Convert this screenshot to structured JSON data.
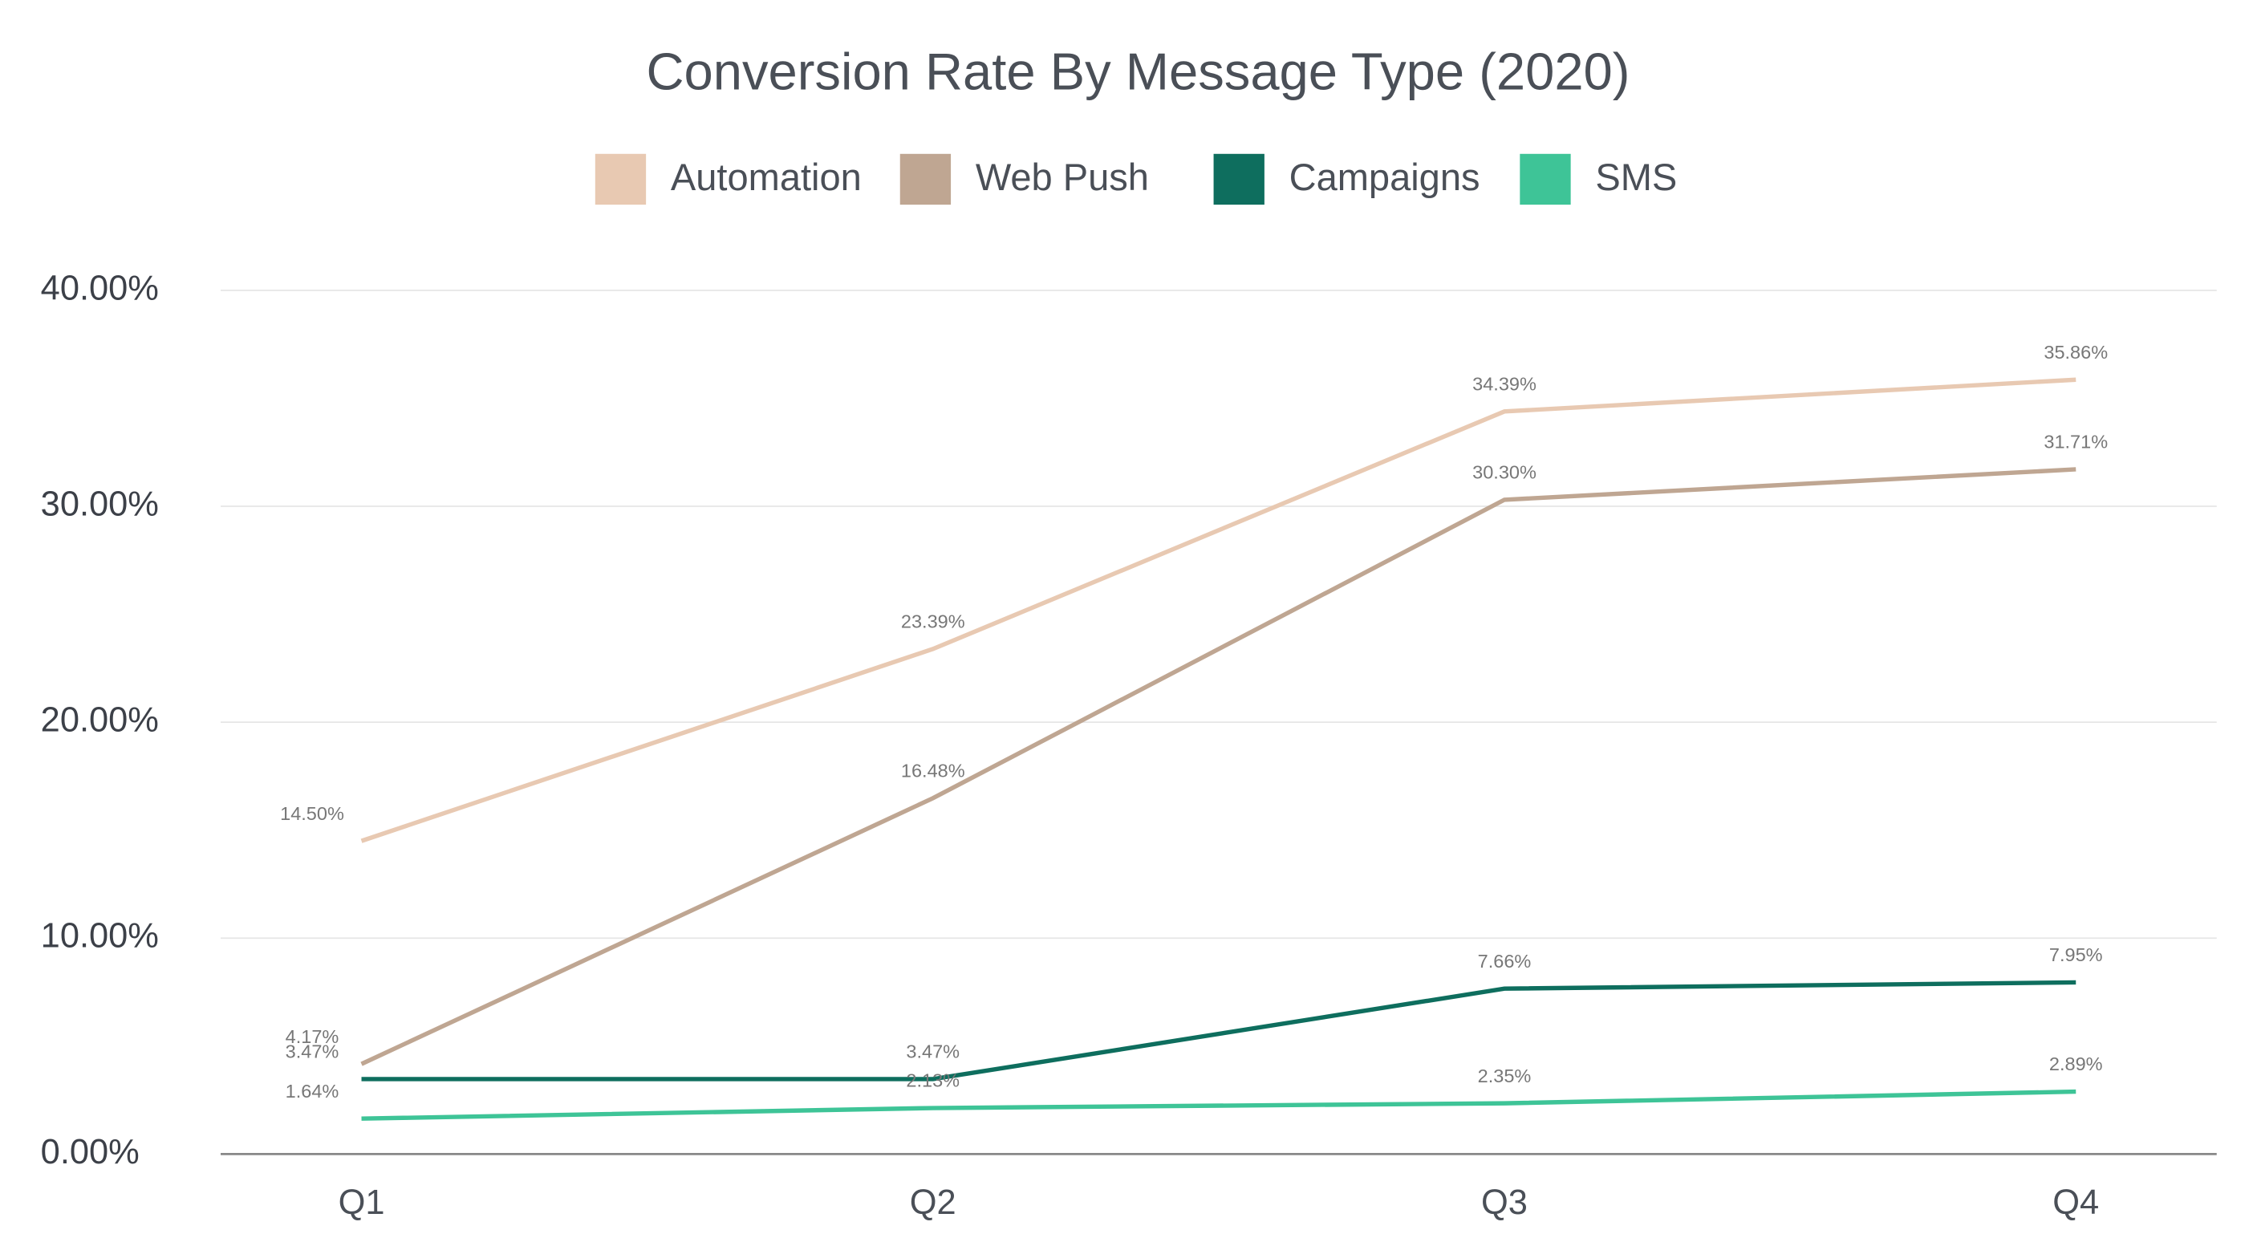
{
  "chart_data": {
    "type": "line",
    "title": "Conversion Rate By Message Type (2020)",
    "categories": [
      "Q1",
      "Q2",
      "Q3",
      "Q4"
    ],
    "series": [
      {
        "name": "Automation",
        "color": "#e8c9b2",
        "values": [
          14.5,
          23.39,
          34.39,
          35.86
        ],
        "value_labels": [
          "14.50%",
          "23.39%",
          "34.39%",
          "35.86%"
        ]
      },
      {
        "name": "Web Push",
        "color": "#bfa692",
        "values": [
          4.17,
          16.48,
          30.3,
          31.71
        ],
        "value_labels": [
          "4.17%",
          "16.48%",
          "30.30%",
          "31.71%"
        ]
      },
      {
        "name": "Campaigns",
        "color": "#0e6e5e",
        "values": [
          3.47,
          3.47,
          7.66,
          7.95
        ],
        "value_labels": [
          "3.47%",
          "3.47%",
          "7.66%",
          "7.95%"
        ]
      },
      {
        "name": "SMS",
        "color": "#3ec497",
        "values": [
          1.64,
          2.13,
          2.35,
          2.89
        ],
        "value_labels": [
          "1.64%",
          "2.13%",
          "2.35%",
          "2.89%"
        ]
      }
    ],
    "ylim": [
      0,
      40
    ],
    "yticks": [
      {
        "value": 0,
        "label": "0.00%"
      },
      {
        "value": 10,
        "label": "10.00%"
      },
      {
        "value": 20,
        "label": "20.00%"
      },
      {
        "value": 30,
        "label": "30.00%"
      },
      {
        "value": 40,
        "label": "40.00%"
      }
    ],
    "grid": true,
    "legend": "top"
  }
}
